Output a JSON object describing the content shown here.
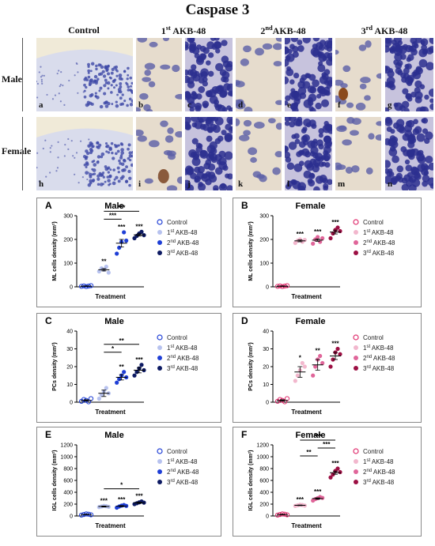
{
  "figure_title": "Caspase 3",
  "column_headers": [
    {
      "base": "Control",
      "sup": ""
    },
    {
      "base": "1",
      "sup": "st",
      "rest": " AKB-48"
    },
    {
      "base": "2",
      "sup": "nd",
      "rest": "AKB-48"
    },
    {
      "base": "3",
      "sup": "rd",
      "rest": " AKB-48"
    }
  ],
  "row_labels": [
    "Male",
    "Female"
  ],
  "tile_labels": {
    "male": [
      "a",
      "b",
      "c",
      "d",
      "e",
      "f",
      "g"
    ],
    "female": [
      "h",
      "i",
      "j",
      "k",
      "l",
      "m",
      "n"
    ]
  },
  "colors": {
    "male": [
      "#1f3fd6",
      "#b7c2ef",
      "#1f3fd6",
      "#0d1a63"
    ],
    "female": [
      "#e0306f",
      "#f2b7cd",
      "#e0669a",
      "#9c0f43"
    ]
  },
  "legend": [
    {
      "base": "Control",
      "sup": "",
      "rest": ""
    },
    {
      "base": "1",
      "sup": "st",
      "rest": " AKB-48"
    },
    {
      "base": "2",
      "sup": "nd",
      "rest": " AKB-48"
    },
    {
      "base": "3",
      "sup": "rd",
      "rest": " AKB-48"
    }
  ],
  "chart_data": [
    {
      "type": "scatter",
      "panel": "A",
      "title": "Male",
      "xlabel": "Treatment",
      "ylabel": "ML cells density (mm²)",
      "ylim": [
        0,
        300
      ],
      "yticks": [
        0,
        100,
        200,
        300
      ],
      "palette": "male",
      "groups": [
        {
          "points": [
            2,
            4,
            1,
            3,
            5
          ],
          "mean": 3,
          "sem": 1,
          "sig": ""
        },
        {
          "points": [
            65,
            78,
            72,
            85,
            60
          ],
          "mean": 72,
          "sem": 5,
          "sig": "**"
        },
        {
          "points": [
            140,
            165,
            190,
            230,
            195
          ],
          "mean": 184,
          "sem": 16,
          "sig": "***"
        },
        {
          "points": [
            205,
            215,
            225,
            232,
            218
          ],
          "mean": 219,
          "sem": 5,
          "sig": "***"
        }
      ],
      "brackets": [
        {
          "from": 1,
          "to": 3,
          "level": 0,
          "label": "***"
        },
        {
          "from": 1,
          "to": 2,
          "level": 1,
          "label": "***"
        }
      ]
    },
    {
      "type": "scatter",
      "panel": "B",
      "title": "Female",
      "xlabel": "Treatment",
      "ylabel": "ML cells density (mm²)",
      "ylim": [
        0,
        300
      ],
      "yticks": [
        0,
        100,
        200,
        300
      ],
      "palette": "female",
      "groups": [
        {
          "points": [
            2,
            4,
            1,
            3,
            5
          ],
          "mean": 3,
          "sem": 1,
          "sig": ""
        },
        {
          "points": [
            185,
            195,
            200,
            190,
            198
          ],
          "mean": 194,
          "sem": 4,
          "sig": "***"
        },
        {
          "points": [
            182,
            200,
            210,
            190,
            205
          ],
          "mean": 197,
          "sem": 5,
          "sig": "***"
        },
        {
          "points": [
            205,
            225,
            240,
            250,
            235
          ],
          "mean": 231,
          "sem": 8,
          "sig": "***"
        }
      ],
      "brackets": []
    },
    {
      "type": "scatter",
      "panel": "C",
      "title": "Male",
      "xlabel": "Treatment",
      "ylabel": "PCs density (mm²)",
      "ylim": [
        0,
        40
      ],
      "yticks": [
        0,
        10,
        20,
        30,
        40
      ],
      "palette": "male",
      "groups": [
        {
          "points": [
            0.5,
            1.5,
            1,
            0.2,
            2
          ],
          "mean": 1,
          "sem": 0.4,
          "sig": ""
        },
        {
          "points": [
            2,
            4,
            6,
            8,
            5
          ],
          "mean": 5,
          "sem": 1.8,
          "sig": ""
        },
        {
          "points": [
            11,
            13,
            15,
            17,
            14
          ],
          "mean": 14,
          "sem": 1.5,
          "sig": "**"
        },
        {
          "points": [
            15,
            17,
            19,
            21,
            18
          ],
          "mean": 18,
          "sem": 1.5,
          "sig": "***"
        }
      ],
      "brackets": [
        {
          "from": 1,
          "to": 3,
          "level": 0,
          "label": "**"
        },
        {
          "from": 1,
          "to": 2,
          "level": 1,
          "label": "*"
        }
      ]
    },
    {
      "type": "scatter",
      "panel": "D",
      "title": "Female",
      "xlabel": "Treatment",
      "ylabel": "PCs density (mm²)",
      "ylim": [
        0,
        40
      ],
      "yticks": [
        0,
        10,
        20,
        30,
        40
      ],
      "palette": "female",
      "groups": [
        {
          "points": [
            0.5,
            1.5,
            1,
            0.2,
            2
          ],
          "mean": 1,
          "sem": 0.4,
          "sig": ""
        },
        {
          "points": [
            12,
            15,
            18,
            22,
            20
          ],
          "mean": 17,
          "sem": 3,
          "sig": "*"
        },
        {
          "points": [
            15,
            20,
            24,
            26,
            22
          ],
          "mean": 21,
          "sem": 3,
          "sig": "**"
        },
        {
          "points": [
            20,
            24,
            28,
            30,
            27
          ],
          "mean": 26,
          "sem": 2,
          "sig": "***"
        }
      ],
      "brackets": []
    },
    {
      "type": "scatter",
      "panel": "E",
      "title": "Male",
      "xlabel": "Treatment",
      "ylabel": "IGL cells density (mm²)",
      "ylim": [
        0,
        1200
      ],
      "yticks": [
        0,
        200,
        400,
        600,
        800,
        1000,
        1200
      ],
      "palette": "male",
      "groups": [
        {
          "points": [
            15,
            25,
            35,
            30,
            20
          ],
          "mean": 25,
          "sem": 5,
          "sig": ""
        },
        {
          "points": [
            150,
            160,
            170,
            165,
            155
          ],
          "mean": 160,
          "sem": 8,
          "sig": "***"
        },
        {
          "points": [
            140,
            160,
            175,
            185,
            170
          ],
          "mean": 166,
          "sem": 10,
          "sig": "***"
        },
        {
          "points": [
            200,
            215,
            230,
            245,
            225
          ],
          "mean": 223,
          "sem": 10,
          "sig": "***"
        }
      ],
      "brackets": [
        {
          "from": 1,
          "to": 3,
          "level": 0,
          "label": "*"
        }
      ]
    },
    {
      "type": "scatter",
      "panel": "F",
      "title": "Female",
      "xlabel": "Treatment",
      "ylabel": "IGL cells density (mm²)",
      "ylim": [
        0,
        1200
      ],
      "yticks": [
        0,
        200,
        400,
        600,
        800,
        1000,
        1200
      ],
      "palette": "female",
      "groups": [
        {
          "points": [
            15,
            25,
            35,
            30,
            20
          ],
          "mean": 25,
          "sem": 5,
          "sig": ""
        },
        {
          "points": [
            170,
            180,
            190,
            185,
            175
          ],
          "mean": 180,
          "sem": 5,
          "sig": "***"
        },
        {
          "points": [
            260,
            285,
            300,
            320,
            305
          ],
          "mean": 294,
          "sem": 12,
          "sig": "***"
        },
        {
          "points": [
            650,
            700,
            760,
            800,
            740
          ],
          "mean": 730,
          "sem": 26,
          "sig": "***"
        }
      ],
      "brackets": [
        {
          "from": 1,
          "to": 3,
          "level": 0,
          "label": "***"
        },
        {
          "from": 2,
          "to": 3,
          "level": 1,
          "label": "***"
        },
        {
          "from": 1,
          "to": 2,
          "level": 2,
          "label": "**"
        }
      ]
    }
  ]
}
